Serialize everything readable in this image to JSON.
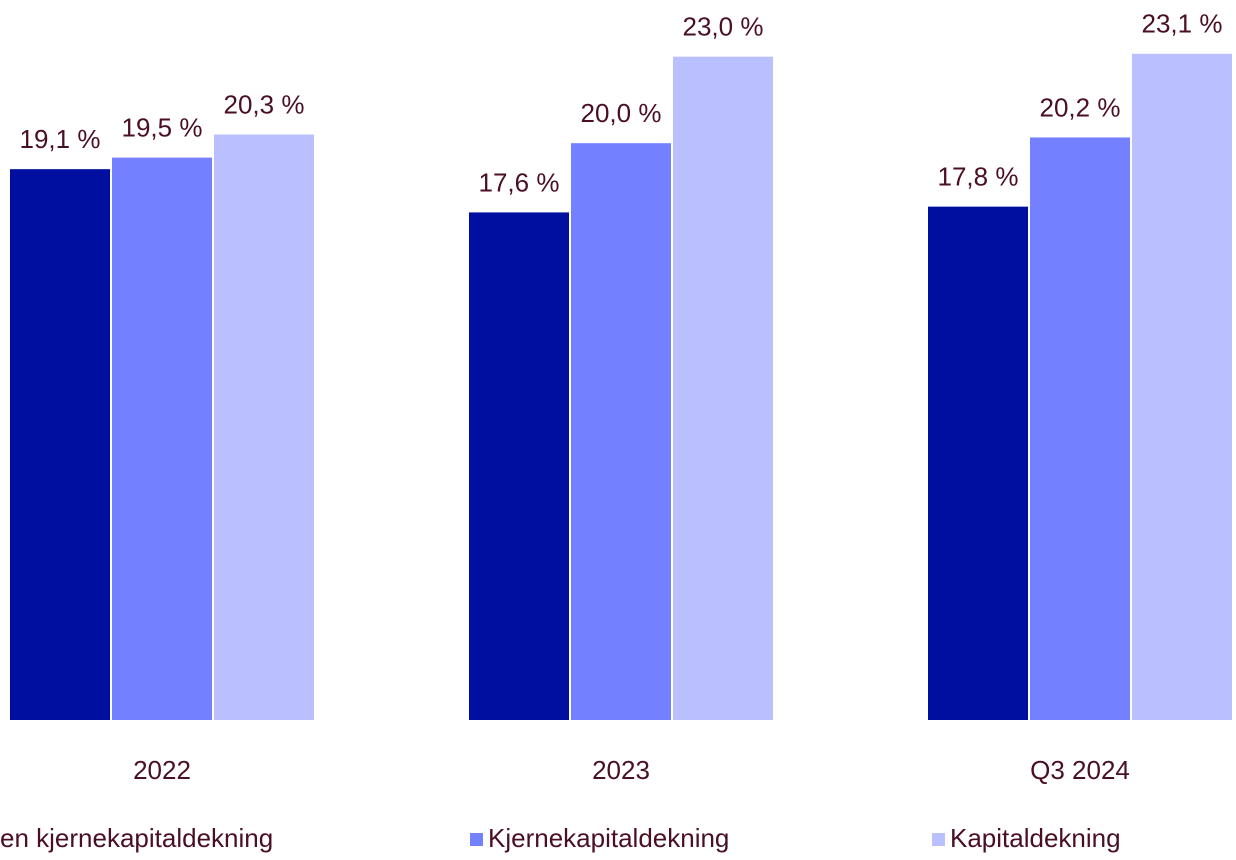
{
  "chart_data": {
    "type": "bar",
    "categories": [
      "2022",
      "2023",
      "Q3 2024"
    ],
    "series": [
      {
        "name": "en kjernekapitaldekning",
        "color": "#000f9f",
        "values": [
          19.1,
          17.6,
          17.8
        ],
        "value_labels": [
          "19,1 %",
          "17,6 %",
          "17,8 %"
        ]
      },
      {
        "name": "Kjernekapitaldekning",
        "color": "#7380ff",
        "values": [
          19.5,
          20.0,
          20.2
        ],
        "value_labels": [
          "19,5 %",
          "20,0 %",
          "20,2 %"
        ]
      },
      {
        "name": "Kapitaldekning",
        "color": "#b9bfff",
        "values": [
          20.3,
          23.0,
          23.1
        ],
        "value_labels": [
          "20,3 %",
          "23,0 %",
          "23,1 %"
        ]
      }
    ],
    "ylim": [
      0,
      25
    ]
  }
}
